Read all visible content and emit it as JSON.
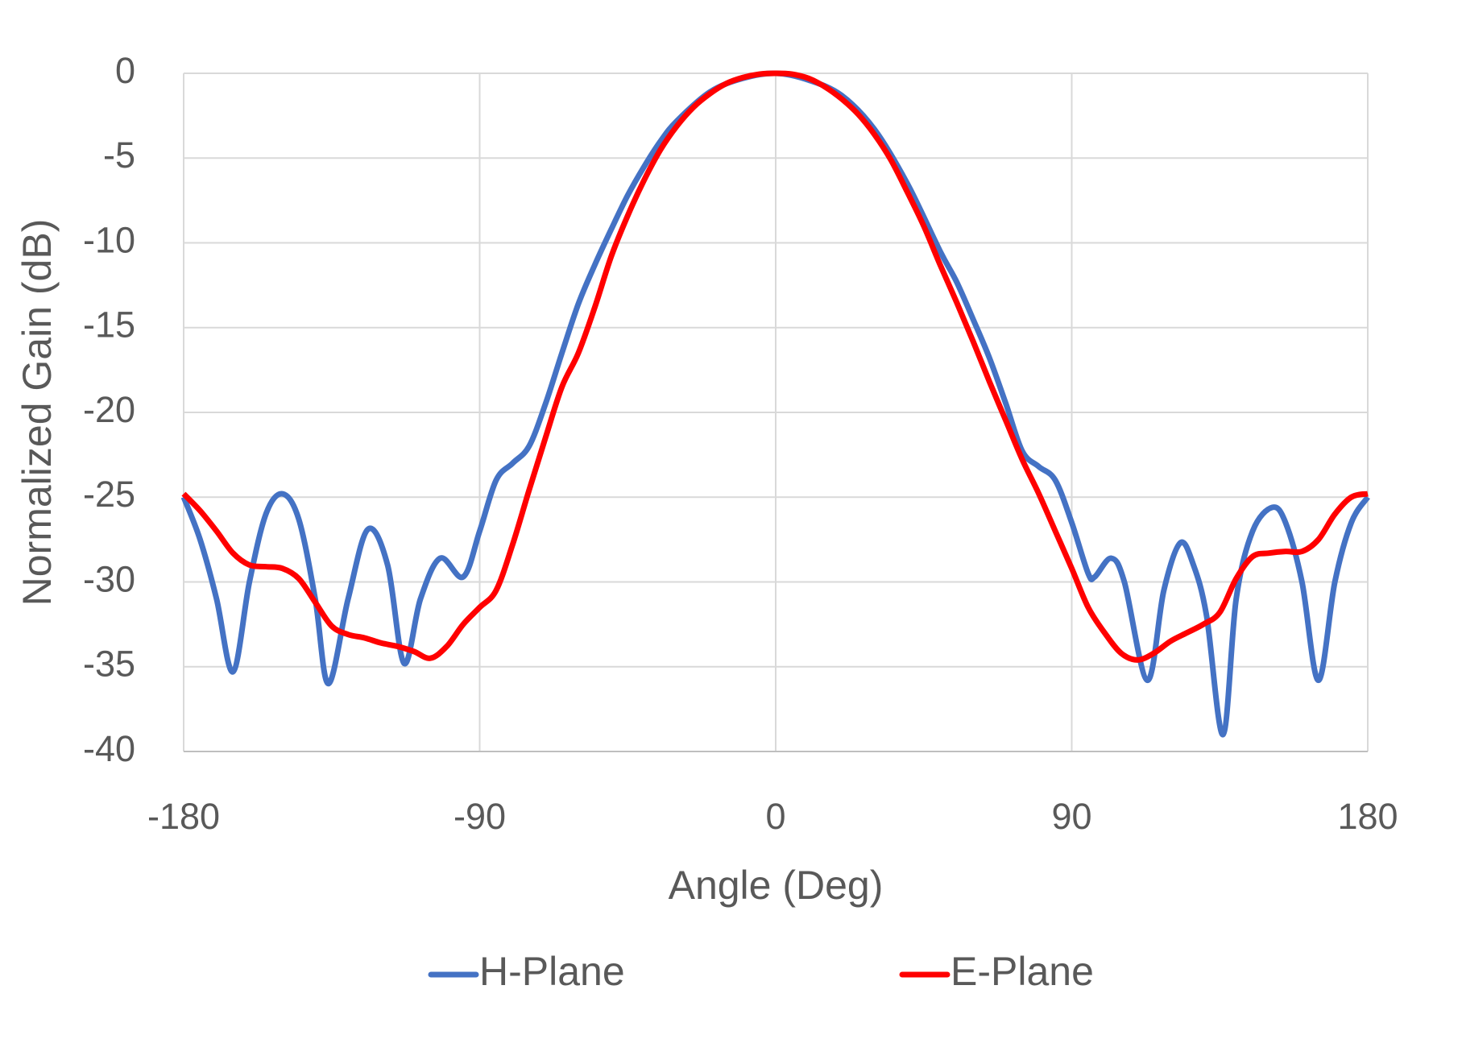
{
  "chart_data": {
    "type": "line",
    "x_label": "Angle (Deg)",
    "y_label": "Normalized Gain (dB)",
    "xlim": [
      -180,
      180
    ],
    "xticks": [
      -180,
      -90,
      0,
      90,
      180
    ],
    "ylim": [
      -40,
      0
    ],
    "yticks": [
      -40,
      -35,
      -30,
      -25,
      -20,
      -15,
      -10,
      -5,
      0
    ],
    "grid": true,
    "legend": "bottom",
    "series": [
      {
        "name": "H-Plane",
        "color": "#4472c4",
        "x": [
          -180,
          -175,
          -170,
          -165,
          -160,
          -155,
          -150,
          -145,
          -140,
          -136,
          -130,
          -124,
          -118,
          -113,
          -108,
          -102,
          -95,
          -90,
          -85,
          -80,
          -75,
          -70,
          -65,
          -60,
          -55,
          -50,
          -45,
          -40,
          -35,
          -30,
          -20,
          -10,
          0,
          10,
          20,
          30,
          40,
          50,
          55,
          60,
          65,
          70,
          75,
          80,
          85,
          90,
          95,
          97,
          102,
          106,
          113,
          118,
          123,
          127,
          131,
          136,
          140,
          145,
          151,
          155,
          160,
          165,
          170,
          175,
          180
        ],
        "values": [
          -25,
          -27.5,
          -31,
          -35.3,
          -30,
          -26,
          -24.8,
          -26.3,
          -31,
          -36,
          -31,
          -26.9,
          -29,
          -34.8,
          -31,
          -28.6,
          -29.7,
          -27,
          -24,
          -23,
          -22,
          -19.5,
          -16.5,
          -13.6,
          -11.3,
          -9.2,
          -7.2,
          -5.5,
          -4,
          -2.8,
          -1.1,
          -0.3,
          0,
          -0.4,
          -1.3,
          -3.3,
          -6.5,
          -10.5,
          -12.3,
          -14.5,
          -16.8,
          -19.5,
          -22.3,
          -23.2,
          -24,
          -26.5,
          -29.5,
          -29.7,
          -28.6,
          -30,
          -35.8,
          -30.5,
          -27.7,
          -29,
          -32,
          -39,
          -31,
          -27,
          -25.6,
          -26.5,
          -30,
          -35.8,
          -30,
          -26.5,
          -25
        ]
      },
      {
        "name": "E-Plane",
        "color": "#ff0000",
        "x": [
          -180,
          -175,
          -170,
          -165,
          -160,
          -155,
          -150,
          -145,
          -140,
          -135,
          -130,
          -125,
          -120,
          -115,
          -110,
          -105,
          -100,
          -95,
          -90,
          -85,
          -80,
          -75,
          -70,
          -65,
          -60,
          -55,
          -50,
          -45,
          -40,
          -35,
          -30,
          -25,
          -20,
          -15,
          -10,
          -5,
          0,
          5,
          10,
          15,
          20,
          25,
          30,
          35,
          40,
          45,
          50,
          55,
          60,
          65,
          70,
          75,
          80,
          85,
          90,
          95,
          100,
          105,
          110,
          115,
          120,
          125,
          130,
          135,
          140,
          145,
          150,
          155,
          160,
          165,
          170,
          175,
          180
        ],
        "values": [
          -24.8,
          -25.8,
          -27,
          -28.3,
          -29,
          -29.1,
          -29.2,
          -29.8,
          -31.2,
          -32.6,
          -33.1,
          -33.3,
          -33.6,
          -33.8,
          -34.1,
          -34.5,
          -33.8,
          -32.5,
          -31.5,
          -30.5,
          -27.8,
          -24.6,
          -21.5,
          -18.5,
          -16.5,
          -13.8,
          -10.8,
          -8.4,
          -6.3,
          -4.5,
          -3.1,
          -2,
          -1.2,
          -0.6,
          -0.25,
          -0.05,
          0,
          -0.05,
          -0.3,
          -0.8,
          -1.5,
          -2.4,
          -3.6,
          -5.1,
          -7,
          -9,
          -11.3,
          -13.5,
          -15.8,
          -18.2,
          -20.5,
          -22.8,
          -24.8,
          -27,
          -29.2,
          -31.5,
          -33,
          -34.2,
          -34.6,
          -34.2,
          -33.5,
          -33,
          -32.5,
          -31.8,
          -29.8,
          -28.5,
          -28.3,
          -28.2,
          -28.2,
          -27.5,
          -26,
          -25,
          -24.8
        ]
      }
    ]
  }
}
